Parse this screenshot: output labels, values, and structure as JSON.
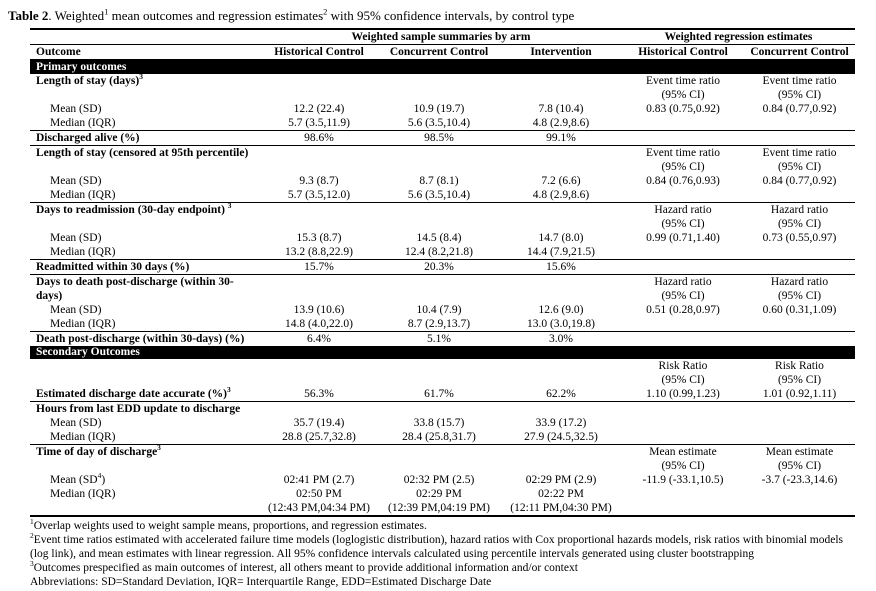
{
  "title": {
    "parts": [
      {
        "t": "Table 2",
        "b": true
      },
      {
        "t": ". Weighted"
      },
      {
        "t": "1",
        "sup": true
      },
      {
        "t": " mean outcomes and regression estimates"
      },
      {
        "t": "2",
        "sup": true
      },
      {
        "t": " with 95% confidence intervals, by control type"
      }
    ]
  },
  "table": {
    "span_headers": {
      "sample": "Weighted sample summaries by arm",
      "regression": "Weighted regression estimates"
    },
    "columns": [
      "Outcome",
      "Historical Control",
      "Concurrent Control",
      "Intervention",
      "Historical Control",
      "Concurrent Control"
    ],
    "rows": [
      {
        "type": "section",
        "label": [
          {
            "t": "Primary outcomes"
          }
        ]
      },
      {
        "type": "outcome",
        "label": [
          {
            "t": "Length of stay (days)"
          },
          {
            "t": "3",
            "sup": true
          }
        ],
        "cells": [
          "",
          "",
          "",
          "Event time ratio\n(95% CI)",
          "Event time ratio\n(95% CI)"
        ]
      },
      {
        "type": "sub",
        "label": [
          {
            "t": "Mean (SD)"
          }
        ],
        "cells": [
          "12.2 (22.4)",
          "10.9 (19.7)",
          "7.8 (10.4)",
          "0.83 (0.75,0.92)",
          "0.84 (0.77,0.92)"
        ]
      },
      {
        "type": "sub",
        "label": [
          {
            "t": "Median (IQR)"
          }
        ],
        "cells": [
          "5.7 (3.5,11.9)",
          "5.6 (3.5,10.4)",
          "4.8 (2.9,8.6)",
          "",
          ""
        ]
      },
      {
        "type": "outcome",
        "line_above": true,
        "label": [
          {
            "t": "Discharged alive (%)"
          }
        ],
        "cells": [
          "98.6%",
          "98.5%",
          "99.1%",
          "",
          ""
        ]
      },
      {
        "type": "outcome",
        "line_above": true,
        "label": [
          {
            "t": "Length of stay (censored at 95th percentile)"
          }
        ],
        "cells": [
          "",
          "",
          "",
          "Event time ratio\n(95% CI)",
          "Event time ratio\n(95% CI)"
        ]
      },
      {
        "type": "sub",
        "label": [
          {
            "t": "Mean (SD)"
          }
        ],
        "cells": [
          "9.3 (8.7)",
          "8.7 (8.1)",
          "7.2 (6.6)",
          "0.84 (0.76,0.93)",
          "0.84 (0.77,0.92)"
        ]
      },
      {
        "type": "sub",
        "label": [
          {
            "t": "Median (IQR)"
          }
        ],
        "cells": [
          "5.7 (3.5,12.0)",
          "5.6 (3.5,10.4)",
          "4.8 (2.9,8.6)",
          "",
          ""
        ]
      },
      {
        "type": "outcome",
        "line_above": true,
        "label": [
          {
            "t": "Days to readmission (30-day endpoint) "
          },
          {
            "t": "3",
            "sup": true
          }
        ],
        "cells": [
          "",
          "",
          "",
          "Hazard ratio\n(95% CI)",
          "Hazard ratio\n(95% CI)"
        ]
      },
      {
        "type": "sub",
        "label": [
          {
            "t": "Mean (SD)"
          }
        ],
        "cells": [
          "15.3 (8.7)",
          "14.5 (8.4)",
          "14.7 (8.0)",
          "0.99 (0.71,1.40)",
          "0.73 (0.55,0.97)"
        ]
      },
      {
        "type": "sub",
        "label": [
          {
            "t": "Median (IQR)"
          }
        ],
        "cells": [
          "13.2 (8.8,22.9)",
          "12.4 (8.2,21.8)",
          "14.4 (7.9,21.5)",
          "",
          ""
        ]
      },
      {
        "type": "outcome",
        "line_above": true,
        "label": [
          {
            "t": "Readmitted within 30 days (%)"
          }
        ],
        "cells": [
          "15.7%",
          "20.3%",
          "15.6%",
          "",
          ""
        ]
      },
      {
        "type": "outcome",
        "line_above": true,
        "label": [
          {
            "t": "Days to death post-discharge (within 30-\ndays)"
          }
        ],
        "cells": [
          "",
          "",
          "",
          "Hazard ratio\n(95% CI)",
          "Hazard ratio\n(95% CI)"
        ]
      },
      {
        "type": "sub",
        "label": [
          {
            "t": "Mean (SD)"
          }
        ],
        "cells": [
          "13.9 (10.6)",
          "10.4 (7.9)",
          "12.6 (9.0)",
          "0.51 (0.28,0.97)",
          "0.60 (0.31,1.09)"
        ]
      },
      {
        "type": "sub",
        "label": [
          {
            "t": "Median (IQR)"
          }
        ],
        "cells": [
          "14.8 (4.0,22.0)",
          "8.7 (2.9,13.7)",
          "13.0 (3.0,19.8)",
          "",
          ""
        ]
      },
      {
        "type": "outcome",
        "line_above": true,
        "label": [
          {
            "t": "Death post-discharge (within 30-days) (%)"
          }
        ],
        "cells": [
          "6.4%",
          "5.1%",
          "3.0%",
          "",
          ""
        ]
      },
      {
        "type": "section",
        "label": [
          {
            "t": "Secondary Outcomes"
          }
        ]
      },
      {
        "type": "outcome",
        "label": [],
        "cells": [
          "",
          "",
          "",
          "Risk Ratio\n(95% CI)",
          "Risk Ratio\n(95% CI)"
        ]
      },
      {
        "type": "outcome",
        "label": [
          {
            "t": "Estimated discharge date accurate (%)"
          },
          {
            "t": "3",
            "sup": true
          }
        ],
        "cells": [
          "56.3%",
          "61.7%",
          "62.2%",
          "1.10 (0.99,1.23)",
          "1.01 (0.92,1.11)"
        ]
      },
      {
        "type": "outcome",
        "line_above": true,
        "label": [
          {
            "t": "Hours from last EDD update to discharge"
          }
        ],
        "cells": [
          "",
          "",
          "",
          "",
          ""
        ]
      },
      {
        "type": "sub",
        "label": [
          {
            "t": "Mean (SD)"
          }
        ],
        "cells": [
          "35.7 (19.4)",
          "33.8 (15.7)",
          "33.9 (17.2)",
          "",
          ""
        ]
      },
      {
        "type": "sub",
        "label": [
          {
            "t": "Median (IQR)"
          }
        ],
        "cells": [
          "28.8 (25.7,32.8)",
          "28.4 (25.8,31.7)",
          "27.9 (24.5,32.5)",
          "",
          ""
        ]
      },
      {
        "type": "outcome",
        "line_above": true,
        "label": [
          {
            "t": "Time of day of discharge"
          },
          {
            "t": "3",
            "sup": true
          }
        ],
        "cells": [
          "",
          "",
          "",
          "Mean estimate\n(95% CI)",
          "Mean estimate\n(95% CI)"
        ]
      },
      {
        "type": "sub",
        "label": [
          {
            "t": "Mean (SD"
          },
          {
            "t": "4",
            "sup": true
          },
          {
            "t": ")"
          }
        ],
        "cells": [
          "02:41 PM (2.7)",
          "02:32 PM (2.5)",
          "02:29 PM (2.9)",
          "-11.9 (-33.1,10.5)",
          "-3.7 (-23.3,14.6)"
        ]
      },
      {
        "type": "sub",
        "label": [
          {
            "t": "Median (IQR)"
          }
        ],
        "cells": [
          "02:50 PM\n(12:43 PM,04:34 PM)",
          "02:29 PM\n(12:39 PM,04:19 PM)",
          "02:22 PM\n(12:11 PM,04:30 PM)",
          "",
          ""
        ]
      }
    ]
  },
  "footnotes": [
    {
      "parts": [
        {
          "t": "1",
          "sup": true
        },
        {
          "t": "Overlap weights used to weight sample means, proportions, and regression estimates."
        }
      ]
    },
    {
      "parts": [
        {
          "t": "2",
          "sup": true
        },
        {
          "t": "Event time ratios estimated with accelerated failure time models (loglogistic distribution), hazard ratios with Cox proportional hazards models, risk ratios with binomial models (log link), and mean estimates with linear regression. All 95% confidence intervals calculated using percentile intervals generated using cluster bootstrapping"
        }
      ]
    },
    {
      "parts": [
        {
          "t": "3",
          "sup": true
        },
        {
          "t": "Outcomes prespecified as main outcomes of interest, all others meant to provide additional information and/or context"
        }
      ]
    },
    {
      "parts": [
        {
          "t": "Abbreviations: SD=Standard Deviation, IQR= Interquartile Range, EDD=Estimated Discharge Date"
        }
      ]
    }
  ]
}
